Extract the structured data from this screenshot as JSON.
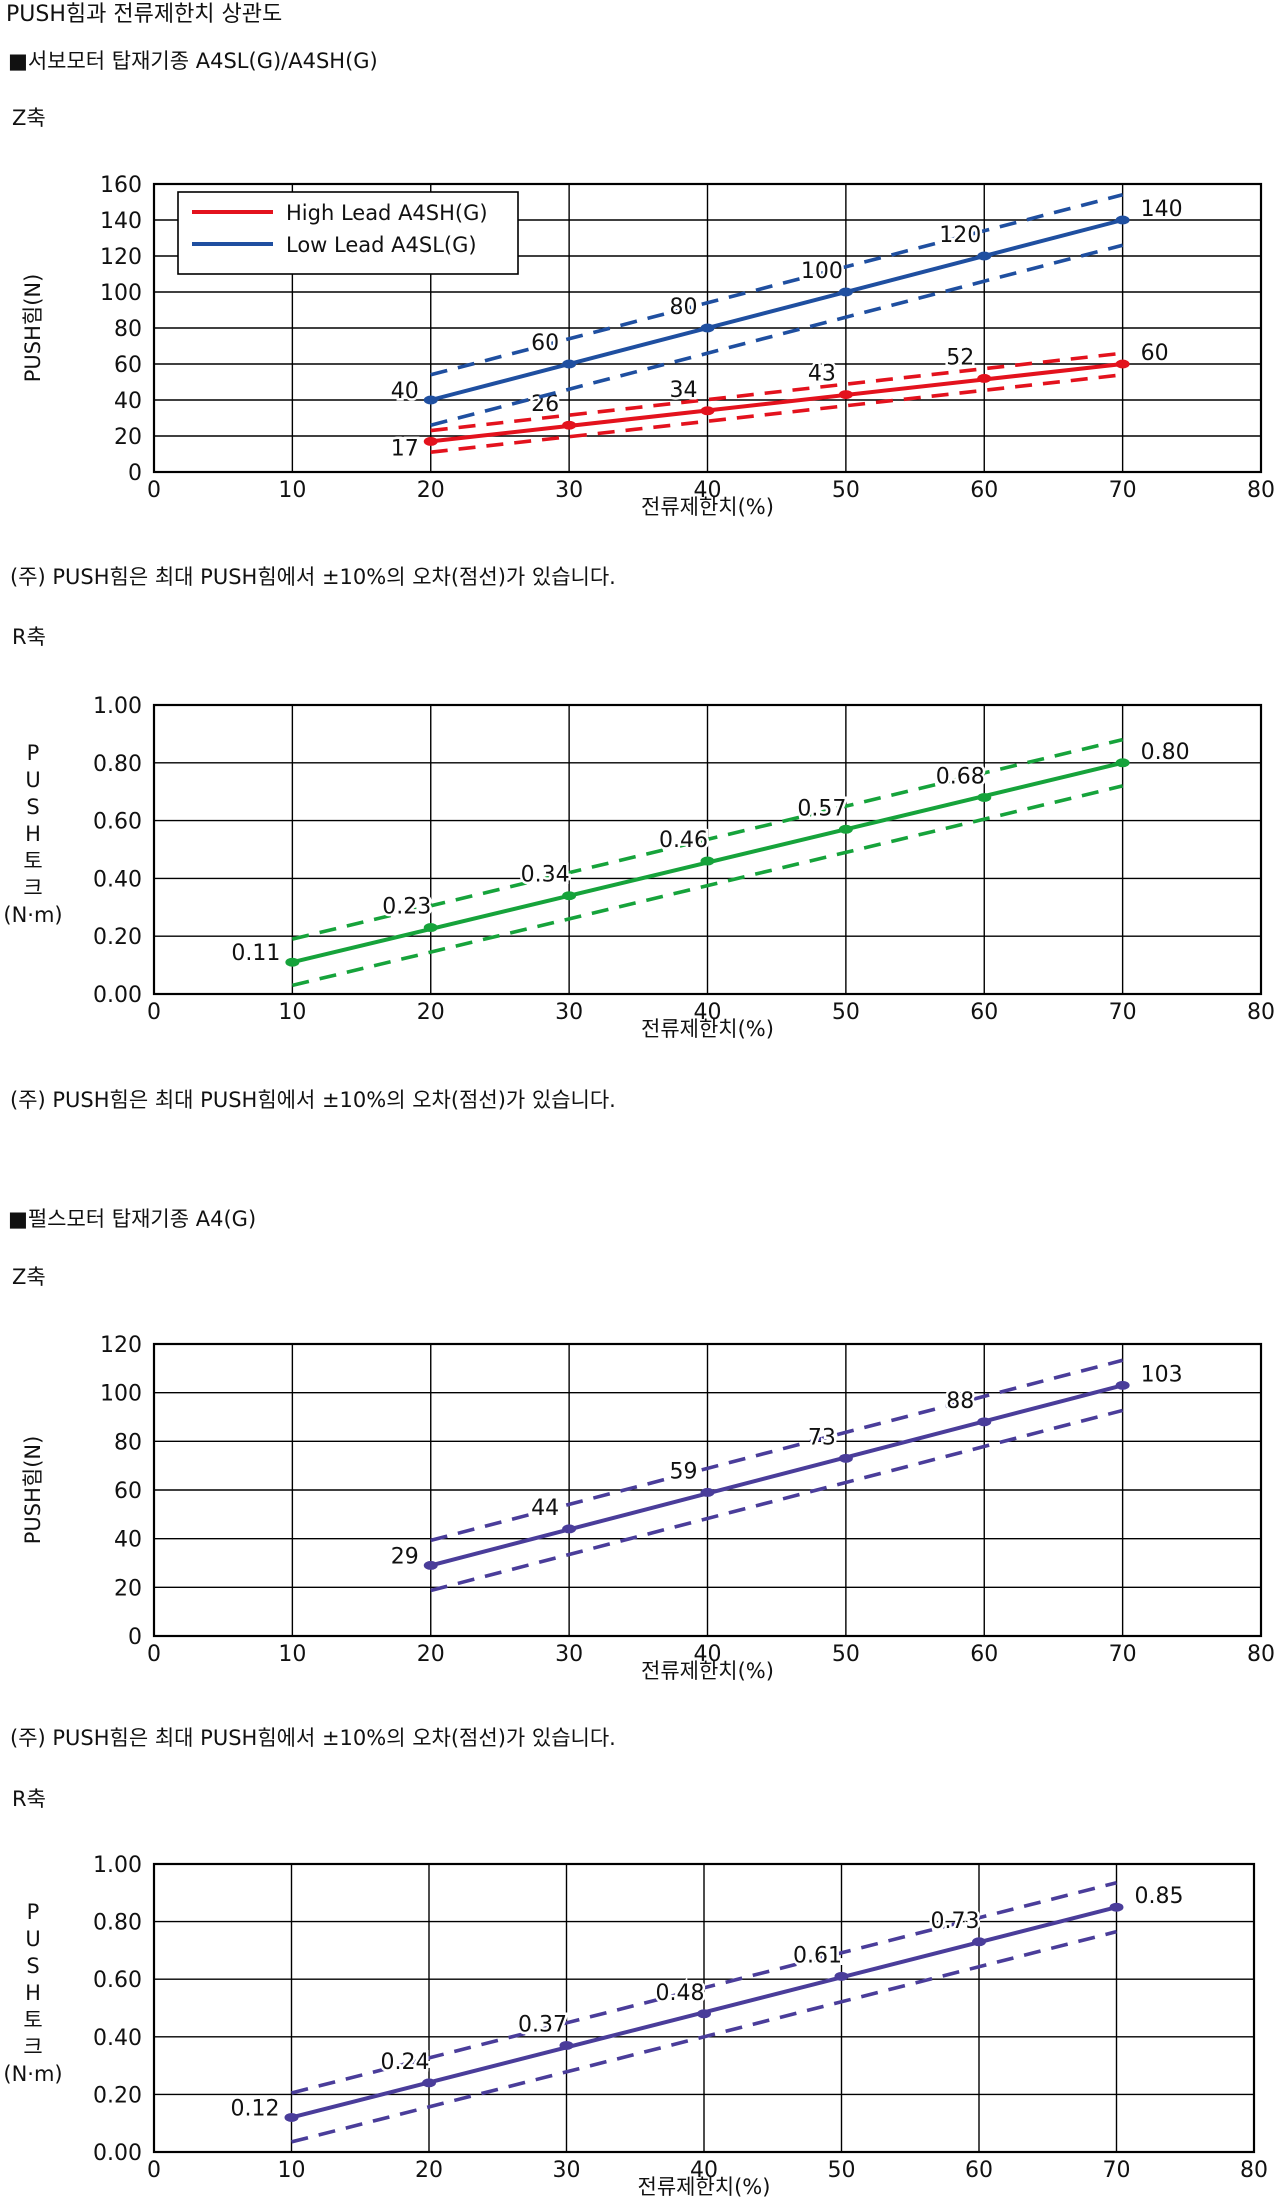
{
  "page_title": "PUSH힘과 전류제한치 상관도",
  "sections": [
    {
      "title": "■서보모터 탑재기종 A4SL(G)/A4SH(G)"
    },
    {
      "title": "■펄스모터 탑재기종 A4(G)"
    }
  ],
  "charts_meta": [
    {
      "axis_name": "Z축",
      "note": "(주) PUSH힘은 최대 PUSH힘에서 ±10%의 오차(점선)가 있습니다."
    },
    {
      "axis_name": "R축",
      "note": "(주) PUSH힘은 최대 PUSH힘에서 ±10%의 오차(점선)가 있습니다."
    },
    {
      "axis_name": "Z축",
      "note": "(주) PUSH힘은 최대 PUSH힘에서 ±10%의 오차(점선)가 있습니다."
    },
    {
      "axis_name": "R축",
      "note": "(주) PUSH힘은 최대 PUSH힘에서 ±10%의 오차(점선)가 있습니다."
    }
  ],
  "chart_data": [
    {
      "type": "line",
      "xlabel": "전류제한치(%)",
      "ylabel": "PUSH힘(N)",
      "ylabel_vertical": false,
      "xlim": [
        0,
        80
      ],
      "ylim": [
        0,
        160
      ],
      "xticks": [
        "0",
        "10",
        "20",
        "30",
        "40",
        "50",
        "60",
        "70",
        "80"
      ],
      "yticks": [
        "0",
        "20",
        "40",
        "60",
        "80",
        "100",
        "120",
        "140",
        "160"
      ],
      "grid": true,
      "legend": "top-left",
      "error_band": "±10%",
      "series": [
        {
          "name": "High Lead A4SH(G)",
          "color": "#e3121d",
          "x": [
            20,
            30,
            40,
            50,
            60,
            70
          ],
          "y": [
            17,
            26,
            34,
            43,
            52,
            60
          ],
          "labels": [
            "17",
            "26",
            "34",
            "43",
            "52",
            "60"
          ]
        },
        {
          "name": "Low Lead A4SL(G)",
          "color": "#1f4fa0",
          "x": [
            20,
            30,
            40,
            50,
            60,
            70
          ],
          "y": [
            40,
            60,
            80,
            100,
            120,
            140
          ],
          "labels": [
            "40",
            "60",
            "80",
            "100",
            "120",
            "140"
          ]
        }
      ]
    },
    {
      "type": "line",
      "xlabel": "전류제한치(%)",
      "ylabel": "PUSH토크(N·m)",
      "ylabel_vertical": true,
      "ylabel_lines": [
        "P",
        "U",
        "S",
        "H",
        "토",
        "크",
        "(N·m)"
      ],
      "xlim": [
        0,
        80
      ],
      "ylim": [
        0,
        1
      ],
      "xticks": [
        "0",
        "10",
        "20",
        "30",
        "40",
        "50",
        "60",
        "70",
        "80"
      ],
      "yticks": [
        "0.00",
        "0.20",
        "0.40",
        "0.60",
        "0.80",
        "1.00"
      ],
      "grid": true,
      "error_band": "±10%",
      "series": [
        {
          "color": "#16a33b",
          "x": [
            10,
            20,
            30,
            40,
            50,
            60,
            70
          ],
          "y": [
            0.11,
            0.23,
            0.34,
            0.46,
            0.57,
            0.68,
            0.8
          ],
          "labels": [
            "0.11",
            "0.23",
            "0.34",
            "0.46",
            "0.57",
            "0.68",
            "0.80"
          ]
        }
      ]
    },
    {
      "type": "line",
      "xlabel": "전류제한치(%)",
      "ylabel": "PUSH힘(N)",
      "ylabel_vertical": false,
      "xlim": [
        0,
        80
      ],
      "ylim": [
        0,
        120
      ],
      "xticks": [
        "0",
        "10",
        "20",
        "30",
        "40",
        "50",
        "60",
        "70",
        "80"
      ],
      "yticks": [
        "0",
        "20",
        "40",
        "60",
        "80",
        "100",
        "120"
      ],
      "grid": true,
      "error_band": "±10%",
      "series": [
        {
          "color": "#4a3d9a",
          "x": [
            20,
            30,
            40,
            50,
            60,
            70
          ],
          "y": [
            29,
            44,
            59,
            73,
            88,
            103
          ],
          "labels": [
            "29",
            "44",
            "59",
            "73",
            "88",
            "103"
          ]
        }
      ]
    },
    {
      "type": "line",
      "xlabel": "전류제한치(%)",
      "ylabel": "PUSH토크(N·m)",
      "ylabel_vertical": true,
      "ylabel_lines": [
        "P",
        "U",
        "S",
        "H",
        "토",
        "크",
        "(N·m)"
      ],
      "xlim": [
        0,
        80
      ],
      "ylim": [
        0,
        1
      ],
      "xticks": [
        "0",
        "10",
        "20",
        "30",
        "40",
        "50",
        "60",
        "70",
        "80"
      ],
      "yticks": [
        "0.00",
        "0.20",
        "0.40",
        "0.60",
        "0.80",
        "1.00"
      ],
      "grid": true,
      "error_band": "±10%",
      "series": [
        {
          "color": "#4a3d9a",
          "x": [
            10,
            20,
            30,
            40,
            50,
            60,
            70
          ],
          "y": [
            0.12,
            0.24,
            0.37,
            0.48,
            0.61,
            0.73,
            0.85
          ],
          "labels": [
            "0.12",
            "0.24",
            "0.37",
            "0.48",
            "0.61",
            "0.73",
            "0.85"
          ]
        }
      ]
    }
  ]
}
